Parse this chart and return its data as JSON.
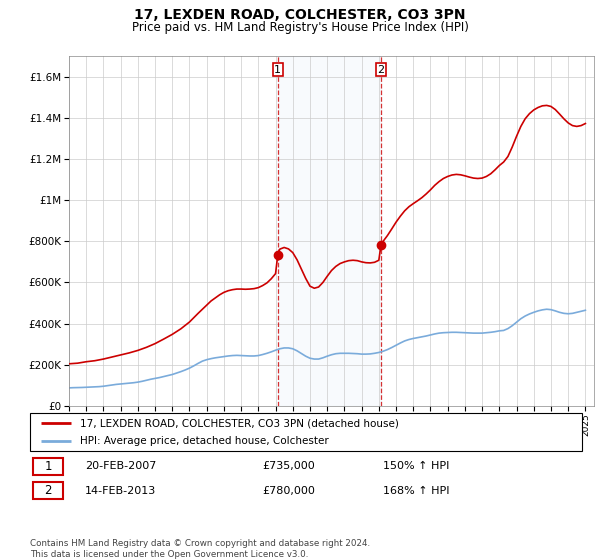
{
  "title": "17, LEXDEN ROAD, COLCHESTER, CO3 3PN",
  "subtitle": "Price paid vs. HM Land Registry's House Price Index (HPI)",
  "hpi_label": "HPI: Average price, detached house, Colchester",
  "price_label": "17, LEXDEN ROAD, COLCHESTER, CO3 3PN (detached house)",
  "sale1_date": "20-FEB-2007",
  "sale1_price": 735000,
  "sale1_pct": "150%",
  "sale2_date": "14-FEB-2013",
  "sale2_price": 780000,
  "sale2_pct": "168%",
  "copyright": "Contains HM Land Registry data © Crown copyright and database right 2024.\nThis data is licensed under the Open Government Licence v3.0.",
  "hpi_color": "#7aabdb",
  "price_color": "#cc0000",
  "vline_color": "#cc0000",
  "ylim": [
    0,
    1700000
  ],
  "xlim_start": 1995.0,
  "xlim_end": 2025.5,
  "sale1_x": 2007.13,
  "sale2_x": 2013.12,
  "hpi_data": [
    [
      1995.0,
      88000
    ],
    [
      1995.25,
      89000
    ],
    [
      1995.5,
      89500
    ],
    [
      1995.75,
      90000
    ],
    [
      1996.0,
      91000
    ],
    [
      1996.25,
      92000
    ],
    [
      1996.5,
      93000
    ],
    [
      1996.75,
      94000
    ],
    [
      1997.0,
      96000
    ],
    [
      1997.25,
      99000
    ],
    [
      1997.5,
      102000
    ],
    [
      1997.75,
      105000
    ],
    [
      1998.0,
      107000
    ],
    [
      1998.25,
      109000
    ],
    [
      1998.5,
      111000
    ],
    [
      1998.75,
      113000
    ],
    [
      1999.0,
      116000
    ],
    [
      1999.25,
      120000
    ],
    [
      1999.5,
      125000
    ],
    [
      1999.75,
      130000
    ],
    [
      2000.0,
      134000
    ],
    [
      2000.25,
      138000
    ],
    [
      2000.5,
      143000
    ],
    [
      2000.75,
      148000
    ],
    [
      2001.0,
      153000
    ],
    [
      2001.25,
      160000
    ],
    [
      2001.5,
      167000
    ],
    [
      2001.75,
      175000
    ],
    [
      2002.0,
      184000
    ],
    [
      2002.25,
      195000
    ],
    [
      2002.5,
      207000
    ],
    [
      2002.75,
      218000
    ],
    [
      2003.0,
      225000
    ],
    [
      2003.25,
      230000
    ],
    [
      2003.5,
      234000
    ],
    [
      2003.75,
      237000
    ],
    [
      2004.0,
      240000
    ],
    [
      2004.25,
      243000
    ],
    [
      2004.5,
      245000
    ],
    [
      2004.75,
      246000
    ],
    [
      2005.0,
      245000
    ],
    [
      2005.25,
      244000
    ],
    [
      2005.5,
      243000
    ],
    [
      2005.75,
      243000
    ],
    [
      2006.0,
      245000
    ],
    [
      2006.25,
      250000
    ],
    [
      2006.5,
      256000
    ],
    [
      2006.75,
      263000
    ],
    [
      2007.0,
      271000
    ],
    [
      2007.25,
      278000
    ],
    [
      2007.5,
      282000
    ],
    [
      2007.75,
      282000
    ],
    [
      2008.0,
      278000
    ],
    [
      2008.25,
      268000
    ],
    [
      2008.5,
      255000
    ],
    [
      2008.75,
      242000
    ],
    [
      2009.0,
      232000
    ],
    [
      2009.25,
      228000
    ],
    [
      2009.5,
      228000
    ],
    [
      2009.75,
      234000
    ],
    [
      2010.0,
      242000
    ],
    [
      2010.25,
      249000
    ],
    [
      2010.5,
      254000
    ],
    [
      2010.75,
      256000
    ],
    [
      2011.0,
      256000
    ],
    [
      2011.25,
      256000
    ],
    [
      2011.5,
      255000
    ],
    [
      2011.75,
      254000
    ],
    [
      2012.0,
      252000
    ],
    [
      2012.25,
      252000
    ],
    [
      2012.5,
      253000
    ],
    [
      2012.75,
      256000
    ],
    [
      2013.0,
      260000
    ],
    [
      2013.25,
      266000
    ],
    [
      2013.5,
      274000
    ],
    [
      2013.75,
      284000
    ],
    [
      2014.0,
      295000
    ],
    [
      2014.25,
      306000
    ],
    [
      2014.5,
      316000
    ],
    [
      2014.75,
      323000
    ],
    [
      2015.0,
      328000
    ],
    [
      2015.25,
      332000
    ],
    [
      2015.5,
      336000
    ],
    [
      2015.75,
      340000
    ],
    [
      2016.0,
      345000
    ],
    [
      2016.25,
      350000
    ],
    [
      2016.5,
      354000
    ],
    [
      2016.75,
      356000
    ],
    [
      2017.0,
      357000
    ],
    [
      2017.25,
      358000
    ],
    [
      2017.5,
      358000
    ],
    [
      2017.75,
      357000
    ],
    [
      2018.0,
      356000
    ],
    [
      2018.25,
      355000
    ],
    [
      2018.5,
      354000
    ],
    [
      2018.75,
      354000
    ],
    [
      2019.0,
      354000
    ],
    [
      2019.25,
      356000
    ],
    [
      2019.5,
      358000
    ],
    [
      2019.75,
      361000
    ],
    [
      2020.0,
      365000
    ],
    [
      2020.25,
      367000
    ],
    [
      2020.5,
      376000
    ],
    [
      2020.75,
      390000
    ],
    [
      2021.0,
      407000
    ],
    [
      2021.25,
      424000
    ],
    [
      2021.5,
      437000
    ],
    [
      2021.75,
      447000
    ],
    [
      2022.0,
      455000
    ],
    [
      2022.25,
      462000
    ],
    [
      2022.5,
      467000
    ],
    [
      2022.75,
      470000
    ],
    [
      2023.0,
      468000
    ],
    [
      2023.25,
      462000
    ],
    [
      2023.5,
      455000
    ],
    [
      2023.75,
      450000
    ],
    [
      2024.0,
      448000
    ],
    [
      2024.25,
      450000
    ],
    [
      2024.5,
      455000
    ],
    [
      2024.75,
      460000
    ],
    [
      2025.0,
      465000
    ]
  ],
  "price_data": [
    [
      1995.0,
      205000
    ],
    [
      1995.5,
      208000
    ],
    [
      1996.0,
      215000
    ],
    [
      1996.5,
      220000
    ],
    [
      1997.0,
      228000
    ],
    [
      1997.5,
      238000
    ],
    [
      1998.0,
      248000
    ],
    [
      1998.5,
      258000
    ],
    [
      1999.0,
      270000
    ],
    [
      1999.5,
      285000
    ],
    [
      2000.0,
      303000
    ],
    [
      2000.5,
      325000
    ],
    [
      2001.0,
      348000
    ],
    [
      2001.5,
      375000
    ],
    [
      2002.0,
      408000
    ],
    [
      2002.5,
      450000
    ],
    [
      2003.0,
      490000
    ],
    [
      2003.25,
      510000
    ],
    [
      2003.5,
      525000
    ],
    [
      2003.75,
      540000
    ],
    [
      2004.0,
      552000
    ],
    [
      2004.25,
      560000
    ],
    [
      2004.5,
      565000
    ],
    [
      2004.75,
      568000
    ],
    [
      2005.0,
      568000
    ],
    [
      2005.25,
      567000
    ],
    [
      2005.5,
      568000
    ],
    [
      2005.75,
      570000
    ],
    [
      2006.0,
      575000
    ],
    [
      2006.25,
      585000
    ],
    [
      2006.5,
      598000
    ],
    [
      2006.75,
      618000
    ],
    [
      2007.0,
      643000
    ],
    [
      2007.13,
      735000
    ],
    [
      2007.25,
      762000
    ],
    [
      2007.5,
      770000
    ],
    [
      2007.75,
      763000
    ],
    [
      2008.0,
      745000
    ],
    [
      2008.25,
      710000
    ],
    [
      2008.5,
      665000
    ],
    [
      2008.75,
      620000
    ],
    [
      2009.0,
      582000
    ],
    [
      2009.25,
      572000
    ],
    [
      2009.5,
      578000
    ],
    [
      2009.75,
      600000
    ],
    [
      2010.0,
      630000
    ],
    [
      2010.25,
      658000
    ],
    [
      2010.5,
      678000
    ],
    [
      2010.75,
      692000
    ],
    [
      2011.0,
      700000
    ],
    [
      2011.25,
      706000
    ],
    [
      2011.5,
      708000
    ],
    [
      2011.75,
      706000
    ],
    [
      2012.0,
      700000
    ],
    [
      2012.25,
      696000
    ],
    [
      2012.5,
      695000
    ],
    [
      2012.75,
      698000
    ],
    [
      2013.0,
      708000
    ],
    [
      2013.12,
      780000
    ],
    [
      2013.25,
      800000
    ],
    [
      2013.5,
      828000
    ],
    [
      2013.75,
      860000
    ],
    [
      2014.0,
      893000
    ],
    [
      2014.25,
      922000
    ],
    [
      2014.5,
      948000
    ],
    [
      2014.75,
      968000
    ],
    [
      2015.0,
      983000
    ],
    [
      2015.25,
      997000
    ],
    [
      2015.5,
      1012000
    ],
    [
      2015.75,
      1030000
    ],
    [
      2016.0,
      1050000
    ],
    [
      2016.25,
      1072000
    ],
    [
      2016.5,
      1090000
    ],
    [
      2016.75,
      1105000
    ],
    [
      2017.0,
      1115000
    ],
    [
      2017.25,
      1122000
    ],
    [
      2017.5,
      1125000
    ],
    [
      2017.75,
      1123000
    ],
    [
      2018.0,
      1118000
    ],
    [
      2018.25,
      1112000
    ],
    [
      2018.5,
      1107000
    ],
    [
      2018.75,
      1105000
    ],
    [
      2019.0,
      1107000
    ],
    [
      2019.25,
      1115000
    ],
    [
      2019.5,
      1128000
    ],
    [
      2019.75,
      1147000
    ],
    [
      2020.0,
      1168000
    ],
    [
      2020.25,
      1185000
    ],
    [
      2020.5,
      1212000
    ],
    [
      2020.75,
      1258000
    ],
    [
      2021.0,
      1310000
    ],
    [
      2021.25,
      1358000
    ],
    [
      2021.5,
      1395000
    ],
    [
      2021.75,
      1420000
    ],
    [
      2022.0,
      1438000
    ],
    [
      2022.25,
      1450000
    ],
    [
      2022.5,
      1458000
    ],
    [
      2022.75,
      1460000
    ],
    [
      2023.0,
      1455000
    ],
    [
      2023.25,
      1440000
    ],
    [
      2023.5,
      1418000
    ],
    [
      2023.75,
      1395000
    ],
    [
      2024.0,
      1375000
    ],
    [
      2024.25,
      1362000
    ],
    [
      2024.5,
      1358000
    ],
    [
      2024.75,
      1362000
    ],
    [
      2025.0,
      1372000
    ]
  ]
}
